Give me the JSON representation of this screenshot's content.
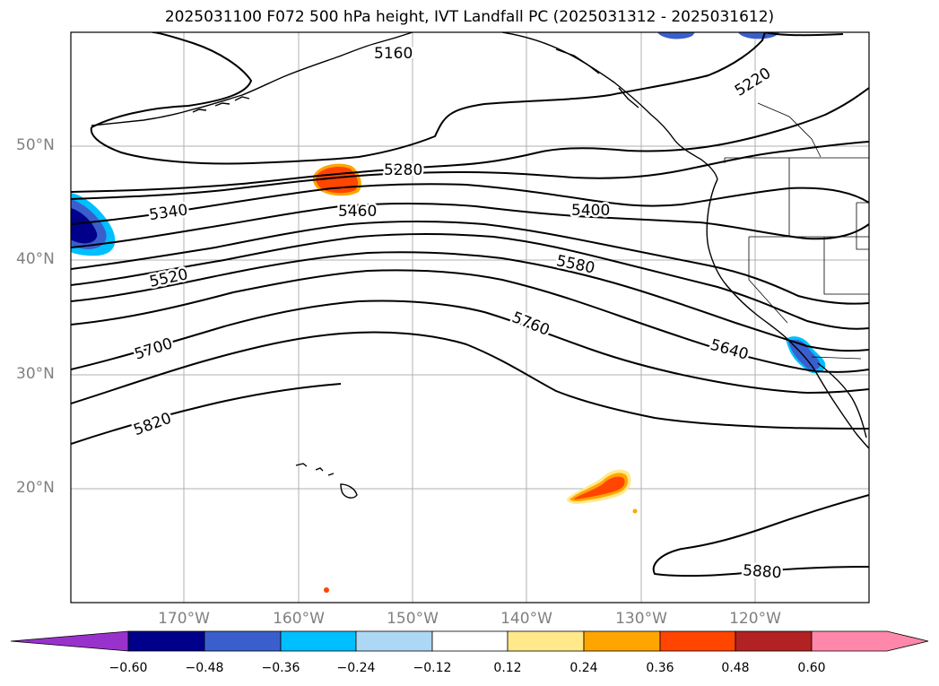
{
  "title": "2025031100 F072 500 hPa height, IVT Landfall PC (2025031312 - 2025031612)",
  "lat_labels": [
    "50°N",
    "40°N",
    "30°N",
    "20°N"
  ],
  "lon_labels": [
    "170°W",
    "160°W",
    "150°W",
    "140°W",
    "130°W",
    "120°W"
  ],
  "contour_labels": [
    "5160",
    "5220",
    "5280",
    "5340",
    "5400",
    "5460",
    "5520",
    "5580",
    "5640",
    "5700",
    "5760",
    "5820",
    "5880"
  ],
  "colorbar": {
    "ticks": [
      "−0.60",
      "−0.48",
      "−0.36",
      "−0.24",
      "−0.12",
      "0.12",
      "0.24",
      "0.36",
      "0.48",
      "0.60"
    ],
    "colors": [
      "#9932cc",
      "#00008b",
      "#3a5fcd",
      "#00bfff",
      "#add8f5",
      "#ffffff",
      "#ffe98a",
      "#ffa500",
      "#ff4500",
      "#b22222",
      "#ff88aa"
    ]
  }
}
